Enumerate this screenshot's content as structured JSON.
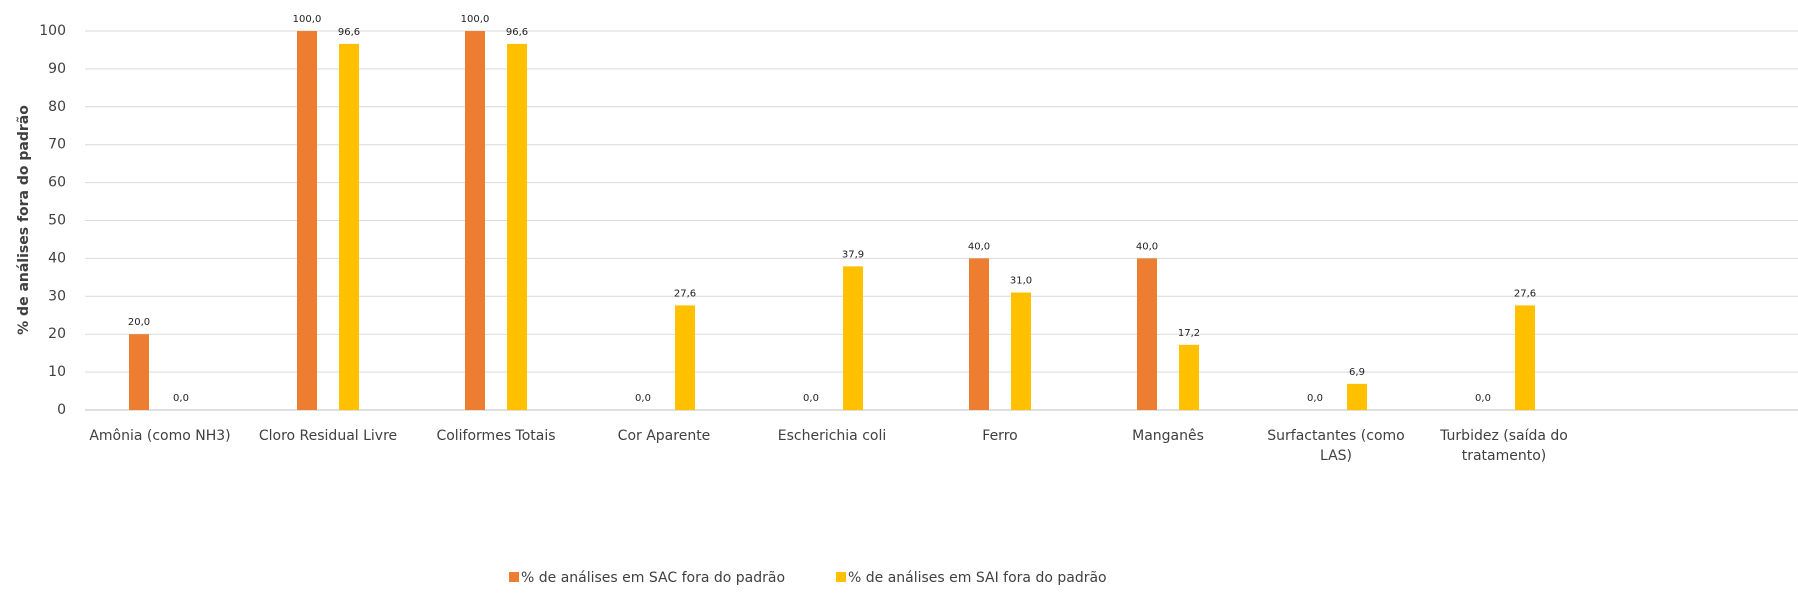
{
  "chart_data": {
    "type": "bar",
    "y_label": "% de análises fora do padrão",
    "categories": [
      "Amônia (como NH3)",
      "Cloro Residual Livre",
      "Coliformes Totais",
      "Cor Aparente",
      "Escherichia coli",
      "Ferro",
      "Manganês",
      "Surfactantes (como LAS)",
      "Turbidez (saída do tratamento)"
    ],
    "series": [
      {
        "name": "% de análises em SAC fora do padrão",
        "color": "#ED7D31",
        "values": [
          20,
          100,
          100,
          0,
          0,
          40,
          40,
          0,
          0
        ],
        "value_labels": [
          "20,0",
          "100,0",
          "100,0",
          "0,0",
          "0,0",
          "40,0",
          "40,0",
          "0,0",
          "0,0"
        ]
      },
      {
        "name": "% de análises em SAI fora do padrão",
        "color": "#FFC000",
        "values": [
          0,
          96.6,
          96.6,
          27.6,
          37.9,
          31,
          17.2,
          6.9,
          27.6
        ],
        "value_labels": [
          "0,0",
          "96,6",
          "96,6",
          "27,6",
          "37,9",
          "31,0",
          "17,2",
          "6,9",
          "27,6"
        ]
      }
    ],
    "ylim": [
      0,
      100
    ],
    "yticks": [
      0,
      10,
      20,
      30,
      40,
      50,
      60,
      70,
      80,
      90,
      100
    ],
    "grid": true,
    "legend": "bottom"
  }
}
